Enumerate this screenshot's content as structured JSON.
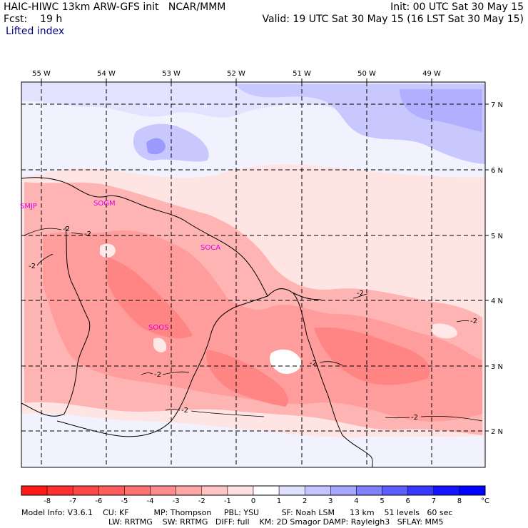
{
  "header": {
    "title": "HAIC-HIWC 13km ARW-GFS init   NCAR/MMM",
    "fcst": "Fcst:    19 h",
    "init": "Init: 00 UTC Sat 30 May 15",
    "valid": "Valid: 19 UTC Sat 30 May 15 (16 LST Sat 30 May 15)",
    "field": "Lifted index"
  },
  "map": {
    "lon_labels": [
      "55 W",
      "54 W",
      "53 W",
      "52 W",
      "51 W",
      "50 W",
      "49 W"
    ],
    "lat_labels": [
      "7 N",
      "6 N",
      "5 N",
      "4 N",
      "3 N",
      "2 N"
    ],
    "stations": [
      "SMJP",
      "SOGM",
      "SOCA",
      "SOOS"
    ],
    "contour_labels": [
      "-2",
      "-2",
      "-2",
      "-2",
      "-2",
      "-2",
      "-2",
      "-2",
      "-2"
    ]
  },
  "colorbar": {
    "levels": [
      "-8",
      "-7",
      "-6",
      "-5",
      "-4",
      "-3",
      "-2",
      "-1",
      "0",
      "1",
      "2",
      "3",
      "4",
      "5",
      "6",
      "7",
      "8"
    ],
    "unit": "°C",
    "colors": [
      "#ff1a1a",
      "#ff3030",
      "#ff4646",
      "#ff5c5c",
      "#ff7272",
      "#ff8c8c",
      "#ffa6a6",
      "#ffc4c4",
      "#ffe0e0",
      "#ffffff",
      "#e0e0ff",
      "#c4c4ff",
      "#a6a6ff",
      "#8080ff",
      "#5c5cff",
      "#3838ff",
      "#1414ff",
      "#0000ff"
    ]
  },
  "footer": {
    "line1": "Model Info: V3.6.1    CU: KF          MP: Thompson     PBL: YSU         SF: Noah LSM      13 km    51 levels   60 sec",
    "line2": "LW: RRTMG    SW: RRTMG   DIFF: full    KM: 2D Smagor DAMP: Rayleigh3   SFLAY: MM5"
  }
}
